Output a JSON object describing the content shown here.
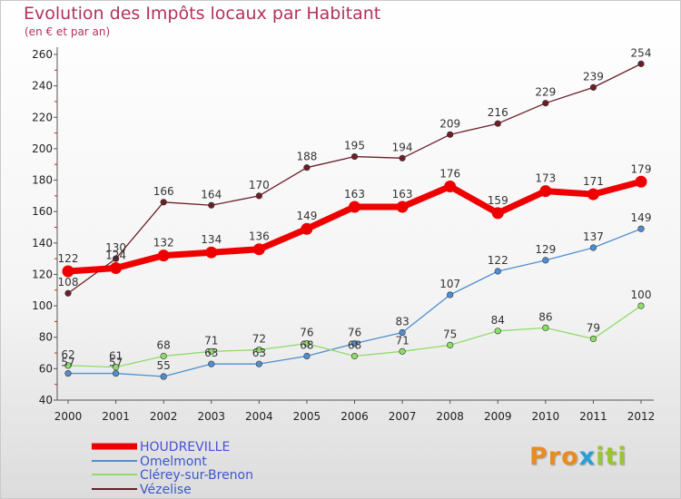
{
  "title": "Evolution des Impôts locaux par Habitant",
  "subtitle": "(en € et par an)",
  "brand": {
    "parts": [
      "Pro",
      "x",
      "iti"
    ],
    "colors": [
      "#e98c1f",
      "#2a9fd6",
      "#9ac431"
    ]
  },
  "chart_data": {
    "type": "line",
    "x": [
      "2000",
      "2001",
      "2002",
      "2003",
      "2004",
      "2005",
      "2006",
      "2007",
      "2008",
      "2009",
      "2010",
      "2011",
      "2012"
    ],
    "ylim": [
      40,
      260
    ],
    "yticks": [
      40,
      60,
      80,
      100,
      120,
      140,
      160,
      180,
      200,
      220,
      240,
      260
    ],
    "grid": false,
    "legend_position": "bottom-left",
    "series": [
      {
        "name": "HOUDREVILLE",
        "color": "#ee0000",
        "values": [
          122,
          124,
          132,
          134,
          136,
          149,
          163,
          163,
          176,
          159,
          173,
          171,
          179
        ]
      },
      {
        "name": "Omelmont",
        "color": "#4f8fcf",
        "values": [
          57,
          57,
          55,
          63,
          63,
          68,
          76,
          83,
          107,
          122,
          129,
          137,
          149
        ]
      },
      {
        "name": "Clérey-sur-Brenon",
        "color": "#8fdc6a",
        "values": [
          62,
          61,
          68,
          71,
          72,
          76,
          68,
          71,
          75,
          84,
          86,
          79,
          100
        ]
      },
      {
        "name": "Vézelise",
        "color": "#6b1f27",
        "values": [
          108,
          130,
          166,
          164,
          170,
          188,
          195,
          194,
          209,
          216,
          229,
          239,
          254
        ]
      }
    ]
  }
}
